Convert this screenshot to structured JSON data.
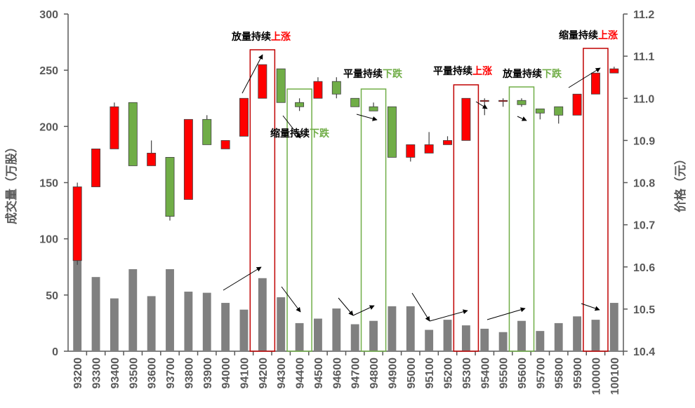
{
  "chart_data": {
    "type": "candlestick_with_volume_bars",
    "categories": [
      "93200",
      "93300",
      "93400",
      "93500",
      "93600",
      "93700",
      "93800",
      "93900",
      "94000",
      "94100",
      "94200",
      "94300",
      "94400",
      "94500",
      "94600",
      "94700",
      "94800",
      "94900",
      "95000",
      "95100",
      "95200",
      "95300",
      "95400",
      "95500",
      "95600",
      "95700",
      "95800",
      "95900",
      "100000",
      "100100"
    ],
    "ylabel_left": "成交量（万股）",
    "ylabel_right": "价格（元）",
    "ylim_left": [
      0,
      300
    ],
    "yticks_left": [
      "0",
      "50",
      "100",
      "150",
      "200",
      "250",
      "300"
    ],
    "ylim_right": [
      10.4,
      11.2
    ],
    "yticks_right": [
      "10.4",
      "10.5",
      "10.6",
      "10.7",
      "10.8",
      "10.9",
      "11.0",
      "11.1",
      "11.2"
    ],
    "volume": [
      82,
      66,
      47,
      73,
      49,
      73,
      53,
      52,
      43,
      37,
      65,
      48,
      25,
      29,
      38,
      24,
      27,
      40,
      40,
      19,
      28,
      23,
      20,
      17,
      27,
      18,
      25,
      31,
      28,
      43
    ],
    "ohlc": [
      {
        "open": 10.615,
        "high": 10.8,
        "low": 10.605,
        "close": 10.79
      },
      {
        "open": 10.79,
        "high": 10.88,
        "low": 10.79,
        "close": 10.88
      },
      {
        "open": 10.88,
        "high": 10.99,
        "low": 10.88,
        "close": 10.98
      },
      {
        "open": 10.99,
        "high": 10.99,
        "low": 10.84,
        "close": 10.84
      },
      {
        "open": 10.84,
        "high": 10.9,
        "low": 10.84,
        "close": 10.87
      },
      {
        "open": 10.86,
        "high": 10.86,
        "low": 10.71,
        "close": 10.72
      },
      {
        "open": 10.76,
        "high": 10.95,
        "low": 10.76,
        "close": 10.95
      },
      {
        "open": 10.95,
        "high": 10.96,
        "low": 10.89,
        "close": 10.89
      },
      {
        "open": 10.88,
        "high": 10.9,
        "low": 10.88,
        "close": 10.9
      },
      {
        "open": 10.91,
        "high": 11.0,
        "low": 10.91,
        "close": 11.0
      },
      {
        "open": 11.0,
        "high": 11.08,
        "low": 11.0,
        "close": 11.08
      },
      {
        "open": 11.07,
        "high": 11.07,
        "low": 10.99,
        "close": 10.99
      },
      {
        "open": 10.99,
        "high": 11.0,
        "low": 10.97,
        "close": 10.98
      },
      {
        "open": 11.0,
        "high": 11.05,
        "low": 11.0,
        "close": 11.04
      },
      {
        "open": 11.04,
        "high": 11.05,
        "low": 11.0,
        "close": 11.01
      },
      {
        "open": 11.0,
        "high": 11.0,
        "low": 10.98,
        "close": 10.98
      },
      {
        "open": 10.98,
        "high": 10.99,
        "low": 10.97,
        "close": 10.97
      },
      {
        "open": 10.98,
        "high": 10.98,
        "low": 10.86,
        "close": 10.86
      },
      {
        "open": 10.86,
        "high": 10.89,
        "low": 10.85,
        "close": 10.89
      },
      {
        "open": 10.87,
        "high": 10.92,
        "low": 10.87,
        "close": 10.89
      },
      {
        "open": 10.89,
        "high": 10.91,
        "low": 10.89,
        "close": 10.9
      },
      {
        "open": 10.9,
        "high": 11.0,
        "low": 10.9,
        "close": 11.0
      },
      {
        "open": 10.995,
        "high": 11.0,
        "low": 10.96,
        "close": 10.995
      },
      {
        "open": 10.995,
        "high": 11.0,
        "low": 10.98,
        "close": 10.995
      },
      {
        "open": 10.995,
        "high": 11.0,
        "low": 10.98,
        "close": 10.985
      },
      {
        "open": 10.975,
        "high": 10.975,
        "low": 10.95,
        "close": 10.965
      },
      {
        "open": 10.98,
        "high": 10.98,
        "low": 10.94,
        "close": 10.96
      },
      {
        "open": 10.96,
        "high": 11.01,
        "low": 10.96,
        "close": 11.01
      },
      {
        "open": 11.01,
        "high": 11.06,
        "low": 11.01,
        "close": 11.06
      },
      {
        "open": 11.06,
        "high": 11.075,
        "low": 11.06,
        "close": 11.07
      }
    ],
    "colors": {
      "up": "#ff0000",
      "down": "#70ad47",
      "volume": "#808080",
      "axis": "#595959",
      "up_box": "#c00000",
      "down_box": "#70ad47"
    },
    "annotations": [
      {
        "label": "放量持续",
        "suffix": "上涨",
        "box": "red"
      },
      {
        "label": "缩量持续",
        "suffix": "下跌",
        "box": "green"
      },
      {
        "label": "平量持续",
        "suffix": "下跌",
        "box": "green"
      },
      {
        "label": "平量持续",
        "suffix": "上涨",
        "box": "red"
      },
      {
        "label": "放量持续",
        "suffix": "下跌",
        "box": "green"
      },
      {
        "label": "缩量持续",
        "suffix": "上涨",
        "box": "red"
      }
    ]
  }
}
